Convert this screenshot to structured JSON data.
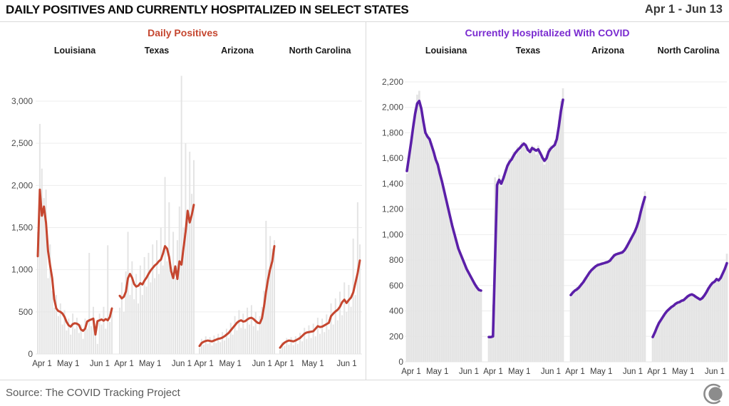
{
  "header": {
    "title": "DAILY POSITIVES AND CURRENTLY HOSPITALIZED IN SELECT STATES",
    "date_range": "Apr 1 - Jun 13"
  },
  "footer": {
    "source": "Source: The COVID Tracking Project",
    "logo": "covid-tracking-project-logo"
  },
  "colors": {
    "daily_positives_accent": "#c5462f",
    "hospitalized_title": "#7a2bd0",
    "hospitalized_line": "#5b1fa8",
    "bar_fill": "#e4e4e4",
    "grid": "#ededed",
    "logo_gray": "#8c8c8c"
  },
  "chart_data": [
    {
      "type": "bar",
      "subtype": "small-multiples bars with 7-day trend line",
      "title": "Daily Positives",
      "title_color": "#c5462f",
      "line_color": "#c5462f",
      "bar_color": "#e4e4e4",
      "x_domain": "Apr 1 - Jun 13",
      "points_step_days": 2,
      "ylim": [
        0,
        3000
      ],
      "ytick_values": [
        0,
        500,
        1000,
        1500,
        2000,
        2500,
        3000
      ],
      "ytick_labels": [
        "0",
        "500",
        "1,000",
        "1,500",
        "2,000",
        "2,500",
        "3,000"
      ],
      "xticks": [
        {
          "label": "Apr 1",
          "day": 0
        },
        {
          "label": "May 1",
          "day": 30
        },
        {
          "label": "Jun 1",
          "day": 61
        }
      ],
      "states": [
        {
          "name": "Louisiana",
          "daily": [
            1450,
            2730,
            2200,
            1850,
            1950,
            900,
            1300,
            750,
            550,
            700,
            450,
            600,
            350,
            520,
            280,
            420,
            230,
            480,
            300,
            430,
            250,
            350,
            180,
            420,
            300,
            1200,
            330,
            560,
            270,
            120,
            480,
            350,
            560,
            300,
            1290,
            380,
            560
          ],
          "avg": [
            1160,
            1950,
            1640,
            1750,
            1560,
            1220,
            1050,
            900,
            650,
            540,
            510,
            500,
            480,
            440,
            380,
            340,
            325,
            355,
            365,
            360,
            345,
            290,
            275,
            300,
            385,
            400,
            410,
            420,
            230,
            390,
            400,
            410,
            395,
            415,
            400,
            440,
            540
          ]
        },
        {
          "name": "Texas",
          "daily": [
            550,
            850,
            500,
            980,
            1450,
            700,
            1100,
            650,
            950,
            600,
            1050,
            700,
            1150,
            800,
            1200,
            850,
            1300,
            900,
            1350,
            950,
            1500,
            1050,
            2100,
            1100,
            1800,
            950,
            1450,
            900,
            1350,
            1750,
            3300,
            1500,
            2500,
            1700,
            2400,
            1900,
            2300
          ],
          "avg": [
            690,
            660,
            680,
            740,
            900,
            950,
            905,
            830,
            800,
            810,
            840,
            825,
            870,
            905,
            950,
            990,
            1020,
            1050,
            1070,
            1100,
            1120,
            1190,
            1280,
            1250,
            1150,
            980,
            900,
            1040,
            890,
            1100,
            1060,
            1260,
            1450,
            1700,
            1560,
            1650,
            1770
          ]
        },
        {
          "name": "Arizona",
          "daily": [
            70,
            180,
            110,
            210,
            120,
            200,
            100,
            220,
            130,
            240,
            140,
            260,
            160,
            300,
            190,
            370,
            230,
            450,
            280,
            520,
            310,
            480,
            300,
            550,
            350,
            580,
            330,
            500,
            280,
            450,
            560,
            750,
            1580,
            1000,
            1400,
            1250,
            1350
          ],
          "avg": [
            95,
            130,
            145,
            155,
            160,
            155,
            150,
            160,
            170,
            180,
            185,
            195,
            210,
            230,
            250,
            280,
            310,
            340,
            370,
            390,
            400,
            385,
            390,
            410,
            425,
            430,
            415,
            390,
            370,
            365,
            420,
            560,
            740,
            890,
            1010,
            1100,
            1280
          ]
        },
        {
          "name": "North Carolina",
          "daily": [
            50,
            140,
            95,
            190,
            110,
            200,
            105,
            210,
            120,
            250,
            150,
            310,
            180,
            340,
            190,
            360,
            210,
            430,
            240,
            420,
            260,
            470,
            290,
            600,
            350,
            660,
            400,
            740,
            460,
            850,
            500,
            820,
            560,
            1370,
            700,
            1800,
            1300
          ],
          "avg": [
            75,
            110,
            135,
            150,
            160,
            155,
            150,
            160,
            175,
            190,
            215,
            240,
            255,
            260,
            265,
            270,
            300,
            330,
            320,
            325,
            340,
            355,
            370,
            450,
            480,
            505,
            525,
            560,
            615,
            645,
            605,
            640,
            670,
            730,
            845,
            960,
            1110
          ]
        }
      ]
    },
    {
      "type": "bar",
      "subtype": "small-multiples bars with 7-day trend line",
      "title": "Currently Hospitalized With COVID",
      "title_color": "#7a2bd0",
      "line_color": "#5b1fa8",
      "bar_color": "#e4e4e4",
      "x_domain": "Apr 1 - Jun 13",
      "points_step_days": 2,
      "ylim": [
        0,
        2200
      ],
      "ytick_values": [
        0,
        200,
        400,
        600,
        800,
        1000,
        1200,
        1400,
        1600,
        1800,
        2000,
        2200
      ],
      "ytick_labels": [
        "0",
        "200",
        "400",
        "600",
        "800",
        "1,000",
        "1,200",
        "1,400",
        "1,600",
        "1,800",
        "2,000",
        "2,200"
      ],
      "xticks": [
        {
          "label": "Apr 1",
          "day": 0
        },
        {
          "label": "May 1",
          "day": 30
        },
        {
          "label": "Jun 1",
          "day": 61
        }
      ],
      "states": [
        {
          "name": "Louisiana",
          "daily": [
            1480,
            1650,
            1700,
            1880,
            1990,
            2100,
            2130,
            1960,
            1910,
            1780,
            1790,
            1730,
            1720,
            1630,
            1610,
            1530,
            1500,
            1400,
            1370,
            1260,
            1230,
            1120,
            1090,
            990,
            970,
            880,
            860,
            800,
            780,
            720,
            710,
            660,
            650,
            600,
            590,
            560,
            565
          ],
          "avg": [
            1500,
            1610,
            1720,
            1840,
            1950,
            2030,
            2050,
            1990,
            1890,
            1800,
            1770,
            1750,
            1700,
            1650,
            1590,
            1550,
            1480,
            1420,
            1350,
            1280,
            1210,
            1140,
            1070,
            1010,
            950,
            890,
            850,
            810,
            770,
            730,
            700,
            670,
            640,
            610,
            585,
            565,
            560
          ]
        },
        {
          "name": "Texas",
          "daily": [
            195,
            200,
            450,
            1450,
            1420,
            1470,
            1380,
            1460,
            1510,
            1520,
            1600,
            1570,
            1650,
            1620,
            1690,
            1660,
            1730,
            1700,
            1720,
            1640,
            1680,
            1700,
            1690,
            1630,
            1700,
            1610,
            1630,
            1550,
            1630,
            1680,
            1700,
            1670,
            1740,
            1780,
            1900,
            2050,
            2150
          ],
          "avg": [
            195,
            195,
            200,
            800,
            1390,
            1430,
            1400,
            1440,
            1490,
            1540,
            1570,
            1590,
            1620,
            1645,
            1665,
            1680,
            1700,
            1715,
            1700,
            1665,
            1650,
            1680,
            1670,
            1660,
            1670,
            1640,
            1605,
            1580,
            1600,
            1650,
            1675,
            1690,
            1705,
            1750,
            1850,
            1970,
            2060
          ]
        },
        {
          "name": "Arizona",
          "daily": [
            510,
            560,
            545,
            590,
            575,
            620,
            610,
            665,
            660,
            715,
            705,
            750,
            740,
            775,
            755,
            785,
            765,
            795,
            775,
            810,
            800,
            850,
            835,
            865,
            845,
            875,
            860,
            915,
            920,
            975,
            980,
            1035,
            1050,
            1125,
            1170,
            1260,
            1340
          ],
          "avg": [
            525,
            545,
            560,
            570,
            585,
            605,
            625,
            650,
            675,
            700,
            720,
            735,
            750,
            760,
            765,
            770,
            775,
            780,
            785,
            795,
            815,
            835,
            845,
            850,
            855,
            860,
            875,
            900,
            930,
            960,
            990,
            1020,
            1060,
            1110,
            1180,
            1240,
            1295
          ]
        },
        {
          "name": "North Carolina",
          "daily": [
            185,
            240,
            260,
            315,
            320,
            365,
            370,
            410,
            405,
            440,
            430,
            465,
            455,
            480,
            470,
            495,
            490,
            525,
            515,
            540,
            512,
            520,
            490,
            500,
            490,
            530,
            535,
            585,
            590,
            630,
            620,
            660,
            630,
            670,
            685,
            740,
            850
          ],
          "avg": [
            195,
            230,
            270,
            305,
            330,
            355,
            380,
            400,
            415,
            430,
            440,
            455,
            465,
            470,
            480,
            485,
            500,
            515,
            525,
            530,
            522,
            510,
            500,
            490,
            500,
            520,
            545,
            575,
            600,
            620,
            630,
            650,
            640,
            660,
            695,
            730,
            775
          ]
        }
      ]
    }
  ]
}
